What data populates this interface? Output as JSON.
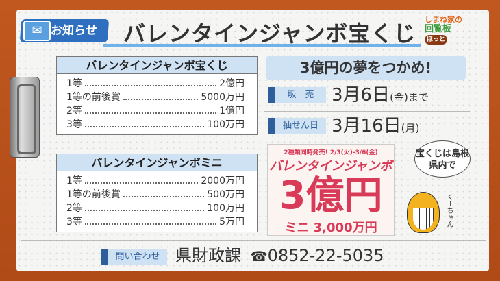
{
  "header": {
    "badge": "お知らせ",
    "title": "バレンタインジャンボ宝くじ",
    "logo": {
      "line1": "しまね家の",
      "line2": "回覧板",
      "tag": "ほっと"
    }
  },
  "tables": [
    {
      "title": "バレンタインジャンボ宝くじ",
      "rows": [
        {
          "label": "1等",
          "value": "2億円"
        },
        {
          "label": "1等の前後賞",
          "value": "5000万円"
        },
        {
          "label": "2等",
          "value": "1億円"
        },
        {
          "label": "3等",
          "value": "100万円"
        }
      ]
    },
    {
      "title": "バレンタインジャンボミニ",
      "rows": [
        {
          "label": "1等",
          "value": "2000万円"
        },
        {
          "label": "1等の前後賞",
          "value": "500万円"
        },
        {
          "label": "2等",
          "value": "100万円"
        },
        {
          "label": "3等",
          "value": "5万円"
        }
      ]
    }
  ],
  "catchphrase": "3億円の夢をつかめ!",
  "sale": {
    "label": "販　売",
    "date": "3月6日",
    "weekday": "(金)",
    "suffix": "まで"
  },
  "draw": {
    "label": "抽せん日",
    "date": "3月16日",
    "weekday": "(月)"
  },
  "poster": {
    "line1": "2種類同時発売! 2/3(火)-3/6(金)",
    "line2": "バレンタインジャンボ",
    "big": "3億円",
    "mini": "ミニ 3,000万円"
  },
  "mascot": {
    "speech": "宝くじは島根県内で",
    "name": "くーちゃん"
  },
  "contact": {
    "label": "問い合わせ",
    "dept": "県財政課",
    "phone_icon": "☎",
    "phone": "0852-22-5035"
  },
  "colors": {
    "frame": "#b9521c",
    "accent": "#2f5f9a",
    "label_bg": "#cfe2f4",
    "poster_red": "#d83a58"
  }
}
